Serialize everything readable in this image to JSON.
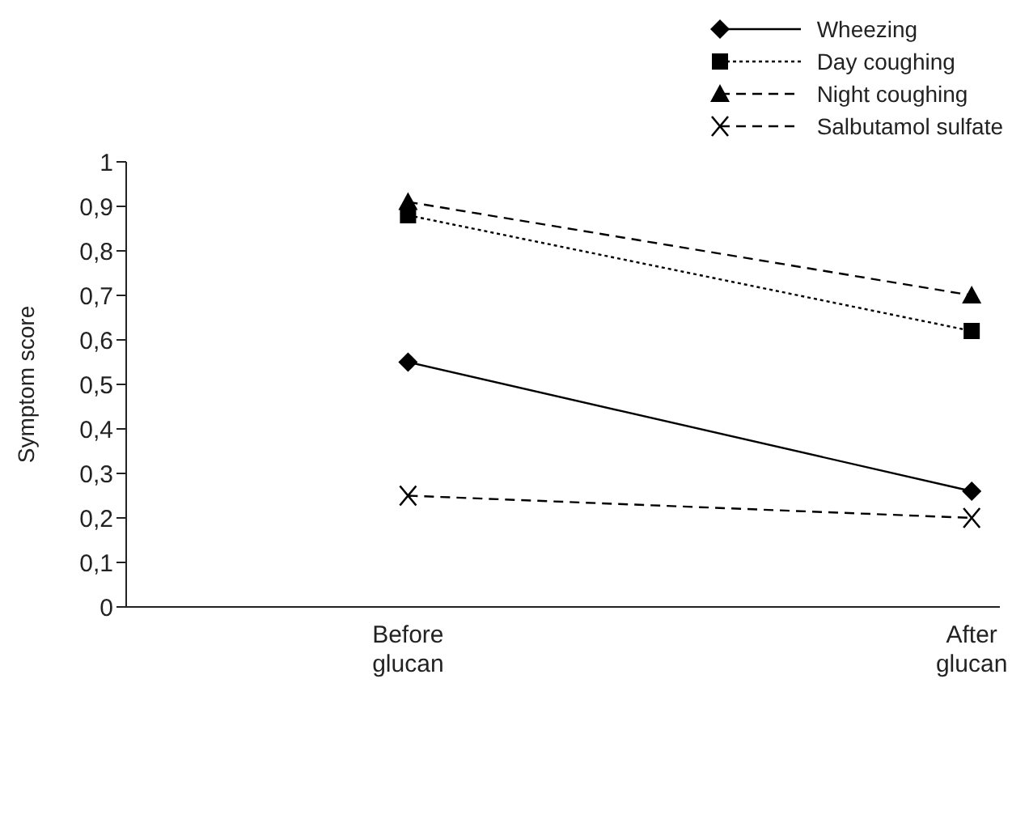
{
  "chart_data": {
    "type": "line",
    "ylabel": "Symptom score",
    "categories": [
      "Before glucan",
      "After glucan"
    ],
    "series": [
      {
        "name": "Wheezing",
        "color": "#000000",
        "values": [
          0.55,
          0.26
        ],
        "marker": "diamond",
        "line_style": "solid"
      },
      {
        "name": "Day coughing",
        "color": "#000000",
        "values": [
          0.88,
          0.62
        ],
        "marker": "square",
        "line_style": "dotted"
      },
      {
        "name": "Night coughing",
        "color": "#000000",
        "values": [
          0.91,
          0.7
        ],
        "marker": "triangle",
        "line_style": "dashed"
      },
      {
        "name": "Salbutamol sulfate",
        "color": "#000000",
        "values": [
          0.25,
          0.2
        ],
        "marker": "cross",
        "line_style": "dashed"
      }
    ],
    "ylim": [
      0,
      1
    ],
    "yticks": [
      0,
      {
        "value": 0.1,
        "label": "0,1"
      },
      {
        "value": 0.2,
        "label": "0,2"
      },
      {
        "value": 0.3,
        "label": "0,3"
      },
      {
        "value": 0.4,
        "label": "0,4"
      },
      {
        "value": 0.5,
        "label": "0,5"
      },
      {
        "value": 0.6,
        "label": "0,6"
      },
      {
        "value": 0.7,
        "label": "0,7"
      },
      {
        "value": 0.8,
        "label": "0,8"
      },
      {
        "value": 0.9,
        "label": "0,9"
      },
      1
    ],
    "grid": false,
    "legend": "top right"
  }
}
